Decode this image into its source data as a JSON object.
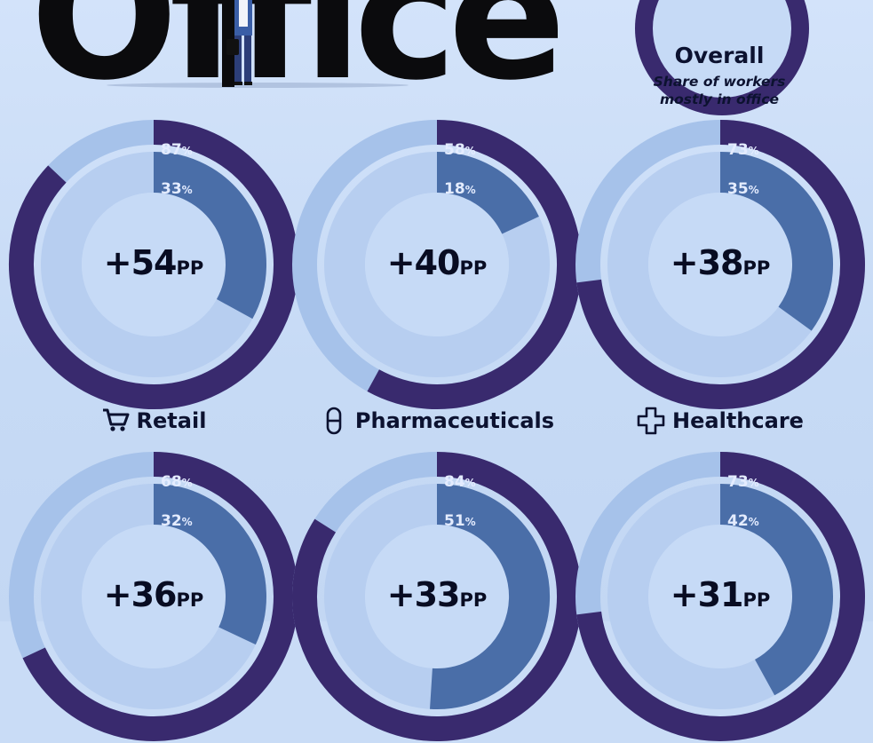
{
  "header": {
    "title": "Office",
    "overall": {
      "label": "Overall",
      "subtitle_line1": "Share of workers",
      "subtitle_line2": "mostly in office"
    }
  },
  "colors": {
    "outer": "#392a6e",
    "outer_bg": "#a6c2ea",
    "inner": "#4a6ea8",
    "inner_bg": "#b7cef0",
    "hole": "#c6daf6"
  },
  "chart_data": {
    "type": "donut",
    "categories": [
      "Retail",
      "Pharmaceuticals",
      "Healthcare",
      "",
      "",
      ""
    ],
    "icons": [
      "cart-icon",
      "pill-icon",
      "cross-icon",
      "",
      "",
      ""
    ],
    "series": [
      {
        "values": [
          87,
          58,
          73,
          68,
          84,
          73
        ]
      },
      {
        "values": [
          33,
          18,
          35,
          32,
          51,
          42
        ]
      }
    ],
    "differences": [
      54,
      40,
      38,
      36,
      33,
      31
    ],
    "outer_labels": [
      "87%",
      "58%",
      "73%",
      "68%",
      "84%",
      "73%"
    ],
    "inner_labels": [
      "33%",
      "18%",
      "35%",
      "32%",
      "51%",
      "42%"
    ],
    "center_labels": [
      "+54",
      "+40",
      "+38",
      "+36",
      "+33",
      "+31"
    ],
    "center_unit": "PP"
  }
}
